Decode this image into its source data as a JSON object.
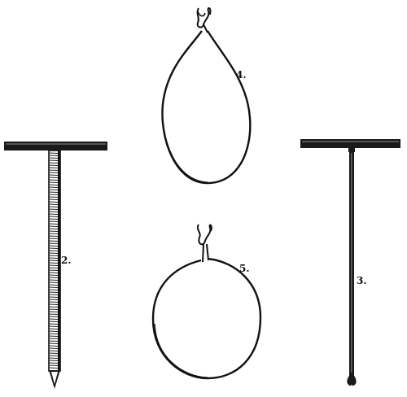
{
  "figures": [
    {
      "id": "t-pin-ridged",
      "label": "2."
    },
    {
      "id": "t-pin-thin",
      "label": "3."
    },
    {
      "id": "loop-teardrop",
      "label": "4."
    },
    {
      "id": "loop-round",
      "label": "5."
    }
  ],
  "colors": {
    "ink": "#111111",
    "paper": "#ffffff"
  }
}
